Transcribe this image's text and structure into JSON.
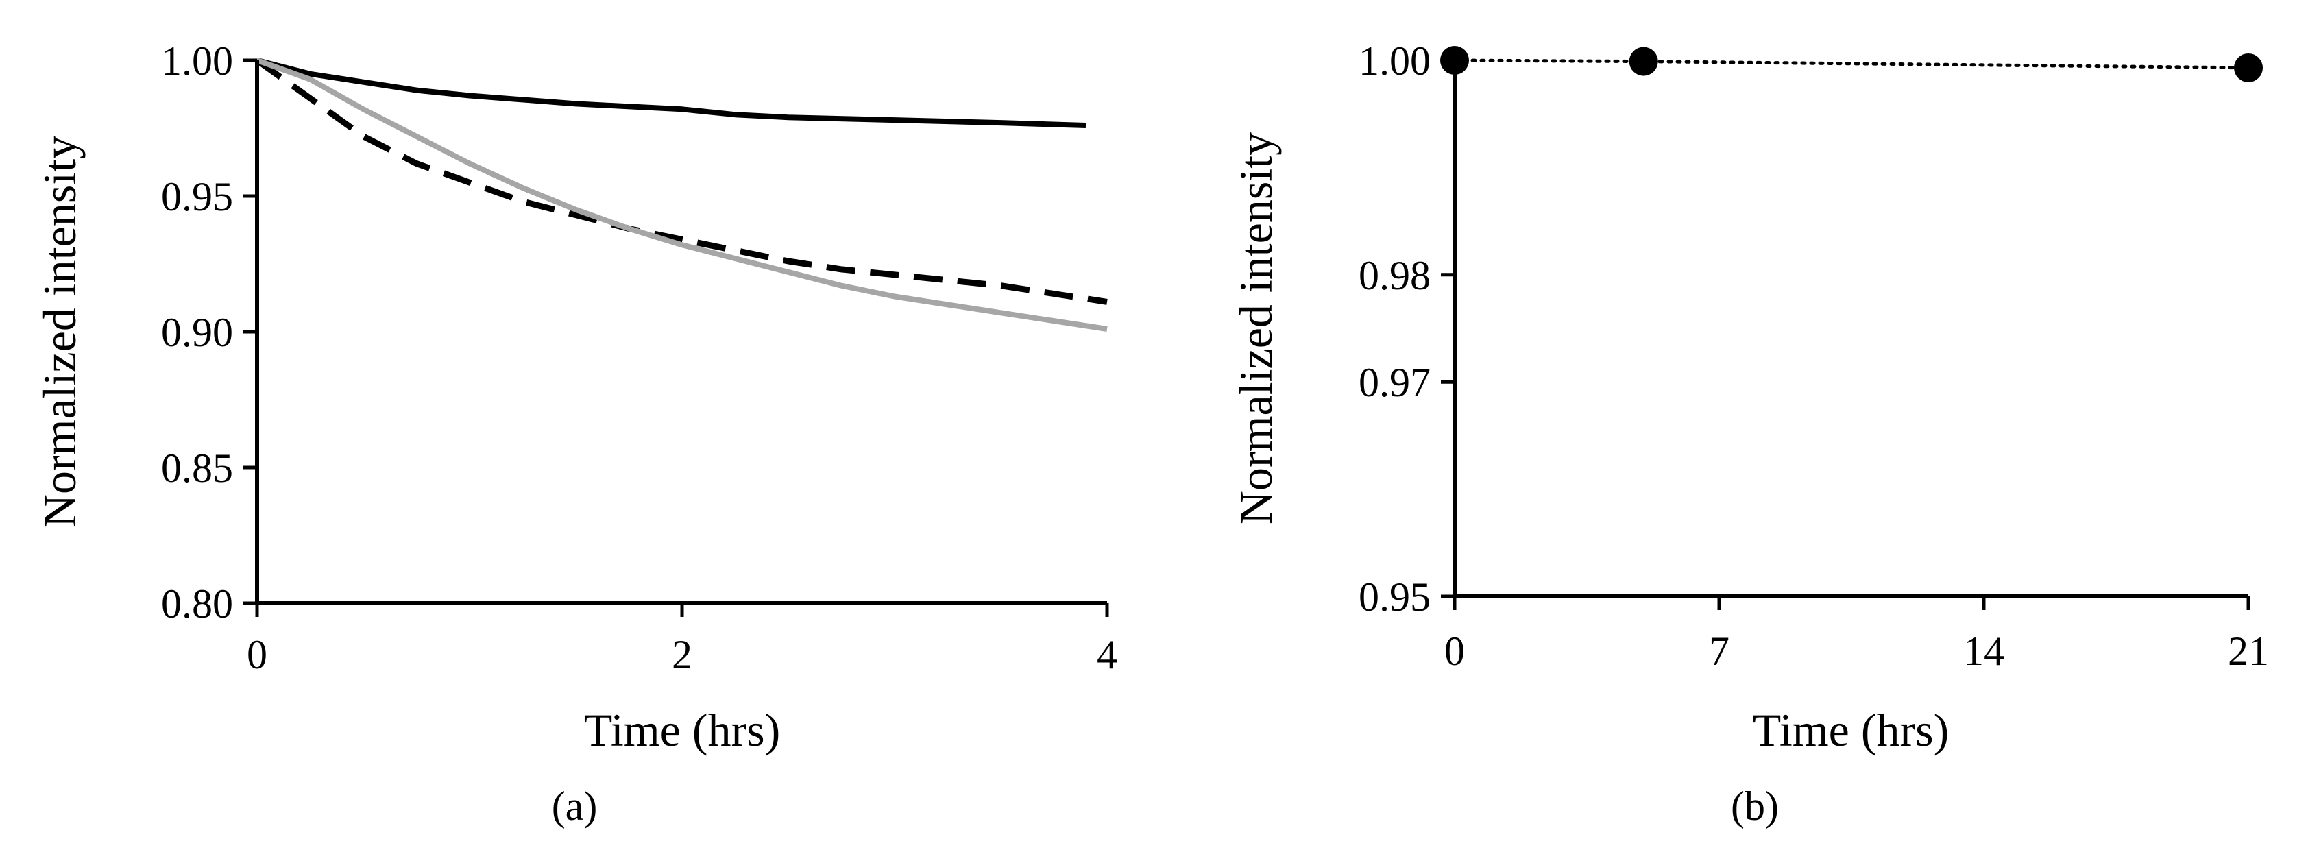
{
  "chart_data": [
    {
      "type": "line",
      "caption": "(a)",
      "xlabel": "Time (hrs)",
      "ylabel": "Normalized intensity",
      "xlim": [
        0,
        4
      ],
      "ylim": [
        0.8,
        1.0
      ],
      "xticks": [
        "0",
        "2",
        "4"
      ],
      "yticks": [
        "1.00",
        "0.95",
        "0.90",
        "0.85",
        "0.80"
      ],
      "grid": false,
      "legend": "none",
      "series": [
        {
          "style": "solid",
          "color": "#000000",
          "x": [
            0,
            0.25,
            0.5,
            0.75,
            1,
            1.5,
            2,
            2.25,
            2.5,
            3,
            3.5,
            3.9
          ],
          "y": [
            1.0,
            0.995,
            0.992,
            0.989,
            0.987,
            0.984,
            0.982,
            0.98,
            0.979,
            0.978,
            0.977,
            0.976
          ]
        },
        {
          "style": "dashed",
          "color": "#000000",
          "x": [
            0,
            0.25,
            0.5,
            0.75,
            1,
            1.25,
            1.5,
            1.75,
            2,
            2.25,
            2.5,
            2.75,
            3,
            3.5,
            4
          ],
          "y": [
            1.0,
            0.986,
            0.972,
            0.962,
            0.955,
            0.948,
            0.943,
            0.938,
            0.934,
            0.93,
            0.926,
            0.923,
            0.921,
            0.917,
            0.911
          ]
        },
        {
          "style": "solid",
          "color": "#a6a6a6",
          "x": [
            0,
            0.25,
            0.5,
            0.75,
            1,
            1.25,
            1.5,
            1.75,
            2,
            2.25,
            2.5,
            2.75,
            3,
            3.5,
            4
          ],
          "y": [
            1.0,
            0.993,
            0.982,
            0.972,
            0.962,
            0.953,
            0.945,
            0.938,
            0.932,
            0.927,
            0.922,
            0.917,
            0.913,
            0.907,
            0.901
          ]
        }
      ]
    },
    {
      "type": "scatter",
      "caption": "(b)",
      "xlabel": "Time (hrs)",
      "ylabel": "Normalized intensity",
      "xlim": [
        0,
        21
      ],
      "ylim": [
        0.95,
        1.0
      ],
      "xticks": [
        "0",
        "7",
        "14",
        "21"
      ],
      "yticks": [
        "1.00",
        "0.98",
        "0.97",
        "0.95"
      ],
      "ytick_values": [
        1.0,
        0.98,
        0.97,
        0.95
      ],
      "grid": false,
      "legend": "none",
      "connector": "dotted",
      "marker": "filled-circle",
      "color": "#000000",
      "x": [
        0,
        5,
        21
      ],
      "y": [
        1.0,
        0.9999,
        0.9993
      ]
    }
  ]
}
